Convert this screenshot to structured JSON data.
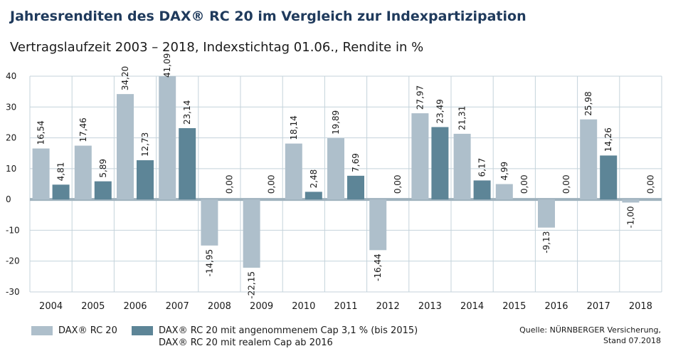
{
  "title": "Jahresrenditen des DAX® RC 20 im Vergleich zur Indexpartizipation",
  "subtitle": "Vertragslaufzeit 2003 – 2018, Indexstichtag 01.06., Rendite in %",
  "colors": {
    "series1": "#aebfcb",
    "series2": "#5d8597",
    "grid": "#c4d3db",
    "zero_line": "#9fb2bd",
    "title": "#1f3a5c"
  },
  "legend": {
    "series1_label": "DAX® RC 20",
    "series2_label_line1": "DAX® RC 20 mit angenommenem Cap 3,1 % (bis 2015)",
    "series2_label_line2": "DAX® RC 20 mit realem Cap ab 2016"
  },
  "source": {
    "line1": "Quelle: NÜRNBERGER Versicherung,",
    "line2": "Stand 07.2018"
  },
  "chart_data": {
    "type": "bar",
    "categories": [
      "2004",
      "2005",
      "2006",
      "2007",
      "2008",
      "2009",
      "2010",
      "2011",
      "2012",
      "2013",
      "2014",
      "2015",
      "2016",
      "2017",
      "2018"
    ],
    "y_ticks": [
      "40",
      "30",
      "20",
      "10",
      "0",
      "-10",
      "-20",
      "-30"
    ],
    "ylim": [
      -30,
      40
    ],
    "grid": true,
    "legend_position": "bottom",
    "series": [
      {
        "name": "DAX® RC 20",
        "values": [
          16.54,
          17.46,
          34.2,
          41.09,
          -14.95,
          -22.15,
          18.14,
          19.89,
          -16.44,
          27.97,
          21.31,
          4.99,
          -9.13,
          25.98,
          -1.0
        ],
        "labels": [
          "16,54",
          "17,46",
          "34,20",
          "41,09",
          "-14,95",
          "-22,15",
          "18,14",
          "19,89",
          "-16,44",
          "27,97",
          "21,31",
          "4,99",
          "-9,13",
          "25,98",
          "-1,00"
        ]
      },
      {
        "name": "DAX® RC 20 mit angenommenem Cap 3,1 % (bis 2015), DAX® RC 20 mit realem Cap ab 2016",
        "values": [
          4.81,
          5.89,
          12.73,
          23.14,
          0.0,
          0.0,
          2.48,
          7.69,
          0.0,
          23.49,
          6.17,
          0.0,
          0.0,
          14.26,
          0.0
        ],
        "labels": [
          "4,81",
          "5,89",
          "12,73",
          "23,14",
          "0,00",
          "0,00",
          "2,48",
          "7,69",
          "0,00",
          "23,49",
          "6,17",
          "0,00",
          "0,00",
          "14,26",
          "0,00"
        ]
      }
    ]
  }
}
